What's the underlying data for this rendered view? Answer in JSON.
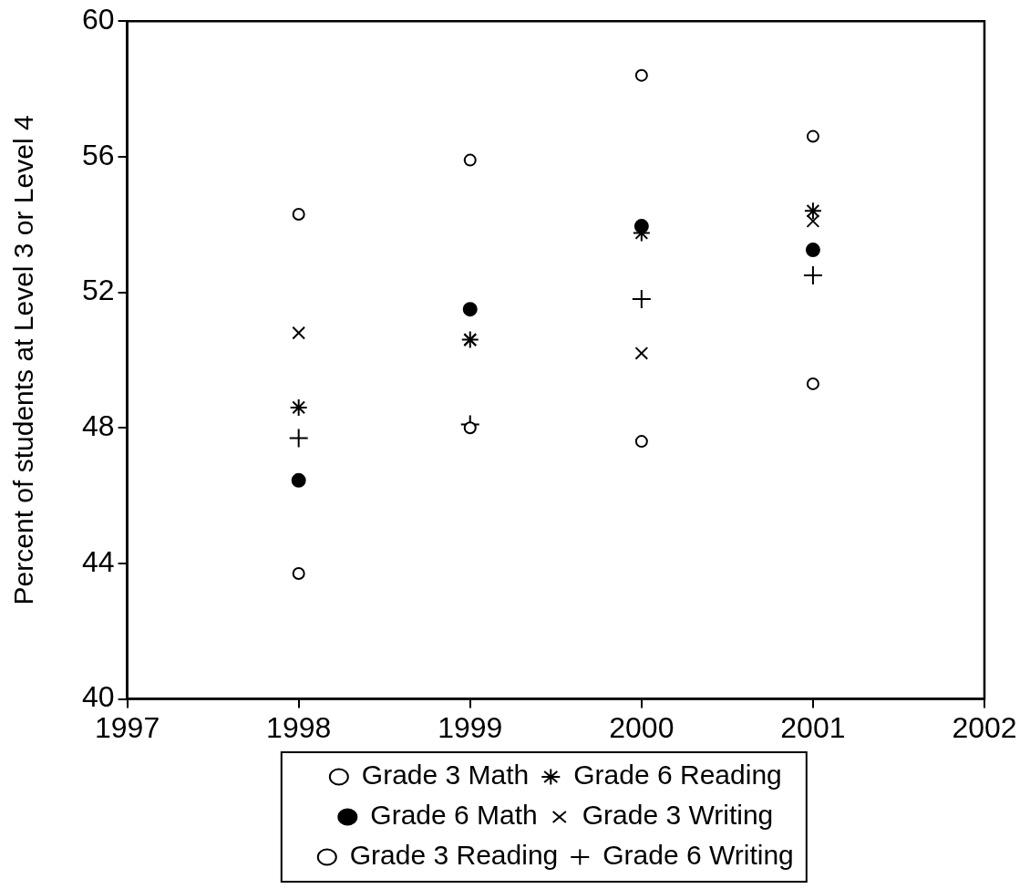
{
  "chart_data": {
    "type": "scatter",
    "ylabel": "Percent of students at Level 3 or Level 4",
    "x": [
      1998,
      1999,
      2000,
      2001
    ],
    "xlim": [
      1997,
      2002
    ],
    "xticks": [
      1997,
      1998,
      1999,
      2000,
      2001,
      2002
    ],
    "ylim": [
      40,
      60
    ],
    "yticks": [
      40,
      44,
      48,
      52,
      56,
      60
    ],
    "grid": false,
    "legend": "bottom",
    "series": [
      {
        "name": "Grade 3 Math",
        "color": "#000000",
        "marker": "circle",
        "values": [
          54.3,
          55.9,
          58.4,
          56.6
        ]
      },
      {
        "name": "Grade 6 Math",
        "color": "#000000",
        "marker": "filled_circle",
        "values": [
          46.45,
          51.5,
          53.95,
          53.25
        ]
      },
      {
        "name": "Grade 3 Reading",
        "color": "#000000",
        "marker": "circle",
        "values": [
          43.7,
          48.0,
          47.6,
          49.3
        ]
      },
      {
        "name": "Grade 6 Reading",
        "color": "#000000",
        "marker": "cross",
        "values": [
          48.6,
          50.6,
          53.75,
          54.4
        ]
      },
      {
        "name": "Grade 3 Writing",
        "color": "#000000",
        "marker": "x",
        "values": [
          50.8,
          50.6,
          50.2,
          54.1
        ]
      },
      {
        "name": "Grade 6 Writing",
        "color": "#000000",
        "marker": "plus",
        "values": [
          47.7,
          48.1,
          51.8,
          52.5
        ]
      }
    ]
  }
}
